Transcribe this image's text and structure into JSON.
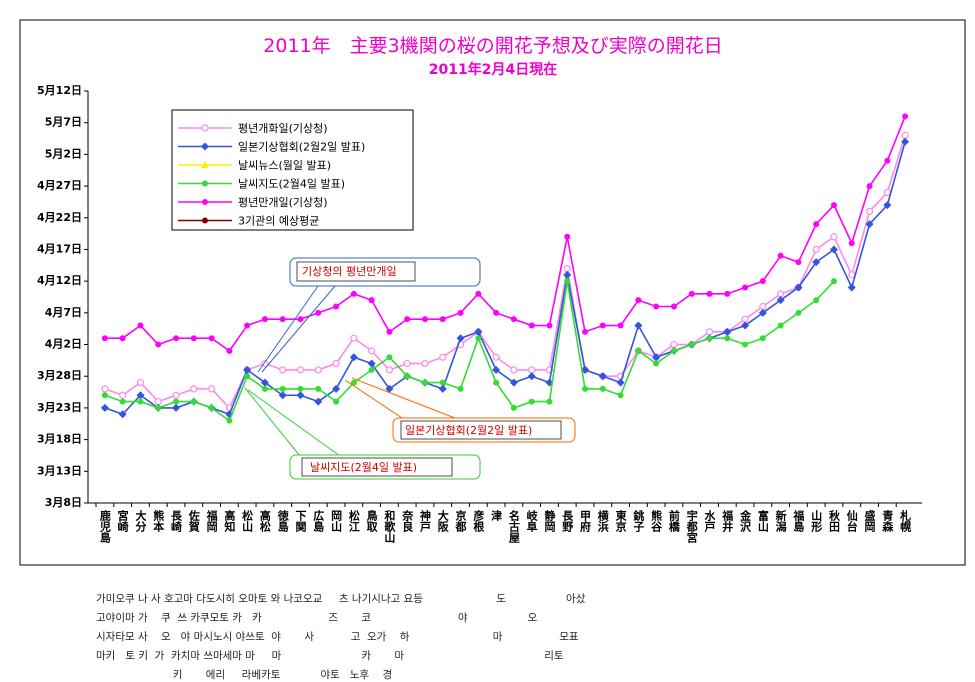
{
  "chart_data": {
    "type": "line",
    "title": "2011年　主要3機関の桜の開花予想及び実際の開花日",
    "subtitle": "2011年2月4日現在",
    "categories": [
      "鹿児島",
      "宮崎",
      "大分",
      "熊本",
      "長崎",
      "佐賀",
      "福岡",
      "高知",
      "松山",
      "高松",
      "徳島",
      "下関",
      "広島",
      "岡山",
      "松江",
      "鳥取",
      "和歌山",
      "奈良",
      "神戸",
      "大阪",
      "京都",
      "彦根",
      "津",
      "名古屋",
      "岐阜",
      "静岡",
      "長野",
      "甲府",
      "横浜",
      "東京",
      "銚子",
      "熊谷",
      "前橋",
      "宇都宮",
      "水戸",
      "福井",
      "金沢",
      "富山",
      "新潟",
      "福島",
      "山形",
      "秋田",
      "仙台",
      "盛岡",
      "青森",
      "札幌"
    ],
    "series": [
      {
        "name": "평년개화일(기상청)",
        "color": "#ff88ee",
        "marker": "circle-open",
        "values": [
          85,
          84,
          86,
          83,
          84,
          85,
          85,
          82,
          88,
          89,
          88,
          88,
          88,
          89,
          93,
          91,
          88,
          89,
          89,
          90,
          92,
          94,
          90,
          88,
          88,
          88,
          104,
          88,
          87,
          87,
          91,
          90,
          92,
          92,
          94,
          94,
          96,
          98,
          100,
          101,
          107,
          109,
          103,
          113,
          116,
          125
        ]
      },
      {
        "name": "일본기상협회(2월2일 발표)",
        "color": "#3355dd",
        "marker": "diamond",
        "values": [
          82,
          81,
          84,
          82,
          82,
          83,
          82,
          81,
          88,
          86,
          84,
          84,
          83,
          85,
          90,
          89,
          85,
          87,
          86,
          85,
          93,
          94,
          88,
          86,
          87,
          86,
          103,
          88,
          87,
          86,
          95,
          90,
          91,
          92,
          93,
          94,
          95,
          97,
          99,
          101,
          105,
          107,
          101,
          111,
          114,
          124
        ]
      },
      {
        "name": "날씨뉴스(월일 발표)",
        "color": "#ffee00",
        "marker": "triangle",
        "values": [
          null,
          null,
          null,
          null,
          null,
          null,
          null,
          null,
          null,
          null,
          null,
          null,
          null,
          null,
          null,
          null,
          null,
          null,
          null,
          null,
          null,
          null,
          null,
          null,
          null,
          null,
          null,
          null,
          null,
          null,
          null,
          null,
          null,
          null,
          null,
          null,
          null,
          null,
          null,
          null,
          null,
          null,
          null,
          null,
          null,
          null
        ]
      },
      {
        "name": "날씨지도(2월4일 발표)",
        "color": "#33dd33",
        "marker": "circle",
        "values": [
          84,
          83,
          83,
          82,
          83,
          83,
          82,
          80,
          87,
          85,
          85,
          85,
          85,
          83,
          86,
          88,
          90,
          87,
          86,
          86,
          85,
          93,
          86,
          82,
          83,
          83,
          102,
          85,
          85,
          84,
          91,
          89,
          91,
          92,
          93,
          93,
          92,
          93,
          95,
          97,
          99,
          102,
          null,
          null,
          null,
          null
        ]
      },
      {
        "name": "평년만개일(기상청)",
        "color": "#ff00ff",
        "marker": "circle",
        "values": [
          93,
          93,
          95,
          92,
          93,
          93,
          93,
          91,
          95,
          96,
          96,
          96,
          97,
          98,
          100,
          99,
          94,
          96,
          96,
          96,
          97,
          100,
          97,
          96,
          95,
          95,
          109,
          94,
          95,
          95,
          99,
          98,
          98,
          100,
          100,
          100,
          101,
          102,
          106,
          105,
          111,
          114,
          108,
          117,
          121,
          128
        ]
      },
      {
        "name": "3기관의 예상평균",
        "color": "#800000",
        "marker": "circle",
        "values": [
          null,
          null,
          null,
          null,
          null,
          null,
          null,
          null,
          null,
          null,
          null,
          null,
          null,
          null,
          null,
          null,
          null,
          null,
          null,
          null,
          null,
          null,
          null,
          null,
          null,
          null,
          null,
          null,
          null,
          null,
          null,
          null,
          null,
          null,
          null,
          null,
          null,
          null,
          null,
          null,
          null,
          null,
          null,
          null,
          null,
          null
        ]
      }
    ],
    "ylim": [
      67,
      132
    ],
    "yticks": [
      {
        "value": 67,
        "label": "3月8日"
      },
      {
        "value": 72,
        "label": "3月13日"
      },
      {
        "value": 77,
        "label": "3月18日"
      },
      {
        "value": 82,
        "label": "3月23日"
      },
      {
        "value": 87,
        "label": "3月28日"
      },
      {
        "value": 92,
        "label": "4月2日"
      },
      {
        "value": 97,
        "label": "4月7日"
      },
      {
        "value": 102,
        "label": "4月12日"
      },
      {
        "value": 107,
        "label": "4月17日"
      },
      {
        "value": 112,
        "label": "4月22日"
      },
      {
        "value": 117,
        "label": "4月27日"
      },
      {
        "value": 122,
        "label": "5月2日"
      },
      {
        "value": 127,
        "label": "5月7日"
      },
      {
        "value": 132,
        "label": "5月12日"
      }
    ],
    "annotations": [
      "기상청의 평년만개일",
      "일본기상협회(2월2일 발표)",
      "날씨지도(2월4일 발표)"
    ]
  },
  "body_text": [
    "가미오쿠 나 사 호고마 다도시히 오마토 와 나코오교     츠 나기시나고 요등                      도                  아샀",
    "고야이마 가    쿠  쓰 카쿠모토 카   카                    즈       코                          야                  오",
    "시자타모 사    오   야 마시노시 야쓰토  야       사           고  오가    하                         마                 모표",
    "마키   토 키  가  카치마 쓰마세마 마     마                        카       마                                          리토",
    "                       키       에리     라베카토            야토   노후    경"
  ]
}
